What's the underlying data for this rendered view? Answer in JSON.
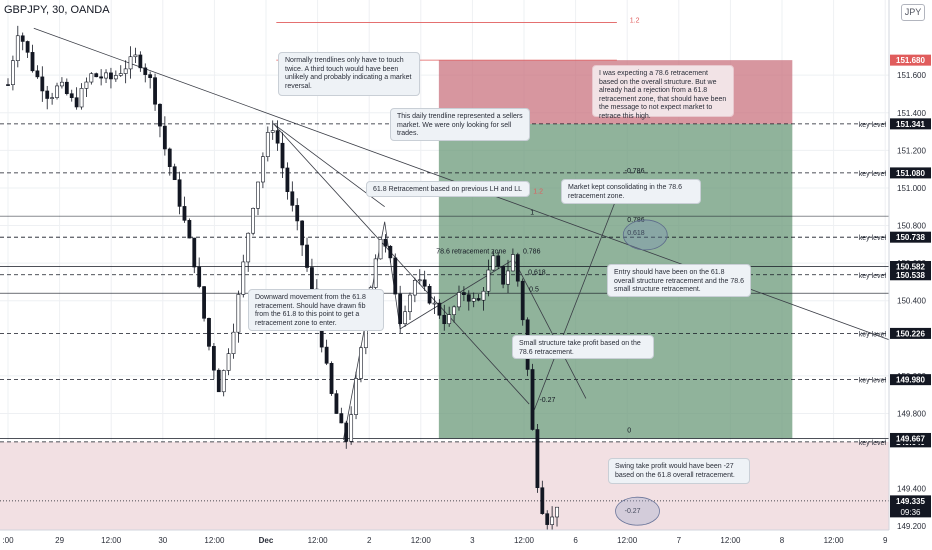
{
  "header": {
    "title": "GBPJPY, 30, OANDA"
  },
  "currency": "JPY",
  "colors": {
    "up_candle": "#ffffff",
    "down_candle": "#131722",
    "trendline": "#3a3d46",
    "stop_zone": "#c9737f",
    "target_zone": "#6b9a79",
    "supply_zone": "#f2e0e3",
    "price_marker": "#131722",
    "red_line": "#e05c5c"
  },
  "chart_data": {
    "type": "candlestick",
    "symbol": "GBPJPY",
    "timeframe": "30",
    "source": "OANDA",
    "ylim": [
      149.18,
      152.0
    ],
    "y_ticks": [
      {
        "value": 151.6,
        "label": "151.600"
      },
      {
        "value": 151.4,
        "label": "151.400"
      },
      {
        "value": 151.2,
        "label": "151.200"
      },
      {
        "value": 151.0,
        "label": "151.000"
      },
      {
        "value": 150.8,
        "label": "150.800"
      },
      {
        "value": 150.6,
        "label": "150.600"
      },
      {
        "value": 150.4,
        "label": "150.400"
      },
      {
        "value": 150.0,
        "label": "150.000"
      },
      {
        "value": 149.8,
        "label": "149.800"
      },
      {
        "value": 149.4,
        "label": "149.400"
      },
      {
        "value": 149.2,
        "label": "149.200"
      }
    ],
    "x_ticks": [
      {
        "slot": 0,
        "label": ":00"
      },
      {
        "slot": 1,
        "label": "29"
      },
      {
        "slot": 2,
        "label": "12:00"
      },
      {
        "slot": 3,
        "label": "30"
      },
      {
        "slot": 4,
        "label": "12:00"
      },
      {
        "slot": 5,
        "label": "Dec"
      },
      {
        "slot": 6,
        "label": "12:00"
      },
      {
        "slot": 7,
        "label": "2"
      },
      {
        "slot": 8,
        "label": "12:00"
      },
      {
        "slot": 9,
        "label": "3"
      },
      {
        "slot": 10,
        "label": "12:00"
      },
      {
        "slot": 11,
        "label": "6"
      },
      {
        "slot": 12,
        "label": "12:00"
      },
      {
        "slot": 13,
        "label": "7"
      },
      {
        "slot": 14,
        "label": "12:00"
      },
      {
        "slot": 15,
        "label": "8"
      },
      {
        "slot": 16,
        "label": "12:00"
      },
      {
        "slot": 17,
        "label": "9"
      }
    ],
    "price_path": [
      [
        0,
        151.55
      ],
      [
        0.2,
        151.85
      ],
      [
        0.5,
        151.62
      ],
      [
        0.8,
        151.48
      ],
      [
        1.0,
        151.55
      ],
      [
        1.3,
        151.44
      ],
      [
        1.6,
        151.6
      ],
      [
        2.0,
        151.58
      ],
      [
        2.5,
        151.7
      ],
      [
        2.8,
        151.55
      ],
      [
        3.0,
        151.25
      ],
      [
        3.3,
        150.95
      ],
      [
        3.6,
        150.62
      ],
      [
        3.9,
        150.15
      ],
      [
        4.1,
        149.92
      ],
      [
        4.4,
        150.3
      ],
      [
        4.7,
        150.85
      ],
      [
        5.0,
        151.25
      ],
      [
        5.15,
        151.34
      ],
      [
        5.4,
        151.0
      ],
      [
        5.7,
        150.7
      ],
      [
        6.0,
        150.3
      ],
      [
        6.3,
        149.85
      ],
      [
        6.55,
        149.65
      ],
      [
        6.8,
        150.05
      ],
      [
        7.0,
        150.45
      ],
      [
        7.2,
        150.75
      ],
      [
        7.4,
        150.62
      ],
      [
        7.6,
        150.3
      ],
      [
        7.9,
        150.52
      ],
      [
        8.2,
        150.4
      ],
      [
        8.5,
        150.28
      ],
      [
        8.8,
        150.45
      ],
      [
        9.1,
        150.38
      ],
      [
        9.4,
        150.62
      ],
      [
        9.6,
        150.5
      ],
      [
        9.8,
        150.65
      ],
      [
        9.95,
        150.38
      ],
      [
        10.05,
        150.1
      ],
      [
        10.15,
        149.75
      ],
      [
        10.25,
        149.45
      ],
      [
        10.35,
        149.3
      ],
      [
        10.5,
        149.2
      ],
      [
        10.65,
        149.33
      ]
    ],
    "horizontal_levels": [
      {
        "value": 151.341,
        "label": "151.341",
        "note": "key level",
        "color": "#131722"
      },
      {
        "value": 151.08,
        "label": "151.080",
        "note": "key level",
        "color": "#131722"
      },
      {
        "value": 150.738,
        "label": "150.738",
        "note": "key level",
        "color": "#131722"
      },
      {
        "value": 150.538,
        "label": "150.538",
        "note": "key level",
        "color": "#131722"
      },
      {
        "value": 150.226,
        "label": "150.226",
        "note": "key level",
        "color": "#131722"
      },
      {
        "value": 149.98,
        "label": "149.980",
        "note": "key level",
        "color": "#131722"
      },
      {
        "value": 149.649,
        "label": "149.649",
        "note": "key level",
        "color": "#131722"
      },
      {
        "value": 150.582,
        "label": "150.582",
        "note": "",
        "color": "#131722"
      },
      {
        "value": 149.667,
        "label": "149.667",
        "note": "",
        "color": "#131722"
      },
      {
        "value": 151.68,
        "label": "151.680",
        "note": "",
        "color": "#e05c5c"
      },
      {
        "value": 149.335,
        "label": "149.335",
        "note": "",
        "color": "#131722",
        "extra": "09:36"
      }
    ],
    "fib_labels": [
      {
        "text": "1.2",
        "color": "#e05c5c"
      },
      {
        "text": "1.2",
        "color": "#e05c5c"
      },
      {
        "text": "1",
        "color": "#131722"
      },
      {
        "text": "0.786",
        "color": "#131722"
      },
      {
        "text": "0.618",
        "color": "#131722"
      },
      {
        "text": "0.5",
        "color": "#131722"
      },
      {
        "text": "0",
        "color": "#131722"
      },
      {
        "text": "-0.786",
        "color": "#131722"
      },
      {
        "text": "0.618",
        "color": "#131722"
      },
      {
        "text": "0.786",
        "color": "#131722"
      },
      {
        "text": "-0.27",
        "color": "#131722"
      },
      {
        "text": "0",
        "color": "#131722"
      },
      {
        "text": "-0.27",
        "color": "#131722"
      },
      {
        "text": "78.6 retracement zone",
        "color": "#131722"
      }
    ]
  },
  "annotations": {
    "trendline_note": "Normally trendlines only have to touch twice. A third touch would have been unlikely and probably indicating a market reversal.",
    "daily_trendline": "This daily trendline represented a sellers market. We were only looking for sell trades.",
    "expectation": "I was expecting a 78.6 retracement based on the overall structure. But we already had a rejection from a 61.8 retracement zone, that should have been the message to not expect market to retrace this high.",
    "fib_basis": "61.8 Retracement based on previous LH and LL",
    "consolidation": "Market kept consolidating in the 78.6 retracement zone.",
    "entry": "Entry should have been on the 61.8 overall structure retracement and the 78.6 small structure retracement.",
    "downward": "Downward movement from the 61.8 retracement. Should have drawn fib from the 61.8 to this point to get a retracement zone to enter.",
    "small_tp": "Small structure take profit based on the 78.6 retracement.",
    "swing_tp": "Swing take profit would have been -27 based on the 61.8 overall retracement."
  }
}
